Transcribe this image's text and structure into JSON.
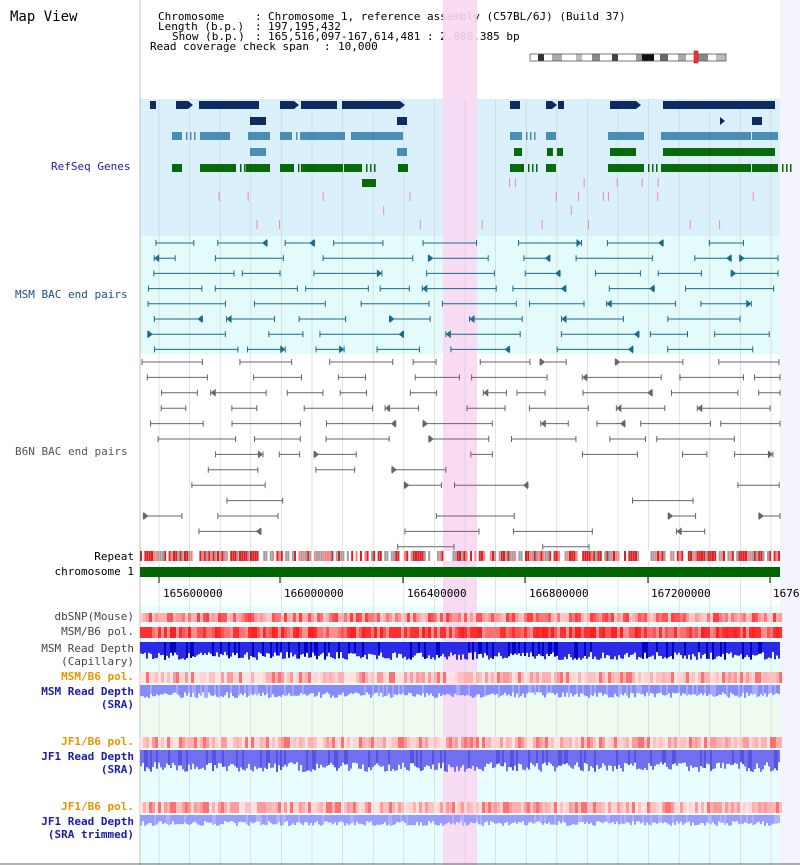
{
  "view": {
    "title": "Map View",
    "info": {
      "chromosome_key": "Chromosome",
      "chromosome_val": "Chromosome 1, reference assembly (C57BL/6J) (Build 37)",
      "length_key": "Length (b.p.)",
      "length_val": "197,195,432",
      "show_key": "Show (b.p.)",
      "show_val": "165,516,097-167,614,481 : 2,098,385 bp",
      "coverage_key": "Read coverage check span",
      "coverage_val": "10,000"
    }
  },
  "tracks": {
    "refseq": {
      "label": "RefSeq Genes",
      "color": "#1b1bb0",
      "bg": "#daf0fa"
    },
    "msm_bac": {
      "label": "MSM BAC end pairs",
      "color": "#1a4f84",
      "bg": "#e4fbfb"
    },
    "b6n_bac": {
      "label": "B6N BAC end pairs",
      "color": "#555555",
      "bg": "#ffffff"
    },
    "repeat": {
      "label": "Repeat"
    },
    "chromosome": {
      "label": "chromosome 1",
      "color": "#006600"
    },
    "dbsnp": {
      "label": "dbSNP(Mouse)",
      "color": "#444444"
    },
    "msm_b6_pol": {
      "label": "MSM/B6 pol.",
      "color": "#444444"
    },
    "msm_depth_cap": {
      "label1": "MSM Read Depth",
      "label2": "(Capillary)",
      "color": "#444444"
    },
    "msm_b6_pol2": {
      "label": "MSM/B6 pol.",
      "color": "#e69500"
    },
    "msm_depth_sra": {
      "label1": "MSM Read Depth",
      "label2": "(SRA)",
      "color": "#1b1bb0"
    },
    "jf1_b6_pol": {
      "label": "JF1/B6 pol.",
      "color": "#e69500"
    },
    "jf1_depth_sra": {
      "label1": "JF1 Read Depth",
      "label2": "(SRA)",
      "color": "#1b1bb0"
    },
    "jf1_b6_pol2": {
      "label": "JF1/B6 pol.",
      "color": "#e69500"
    },
    "jf1_depth_trim": {
      "label1": "JF1 Read Depth",
      "label2": "(SRA trimmed)",
      "color": "#1b1bb0"
    }
  },
  "axis": {
    "ticks": [
      "165600000",
      "166000000",
      "166400000",
      "166800000",
      "167200000",
      "1676"
    ]
  }
}
